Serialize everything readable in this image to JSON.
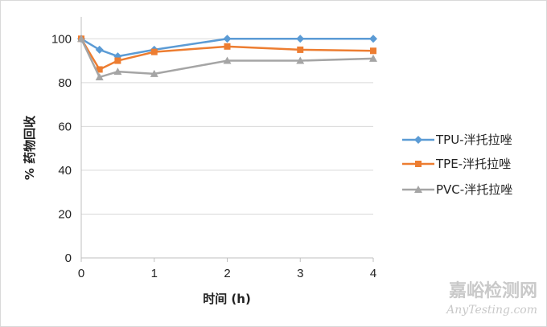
{
  "chart_data": {
    "type": "line",
    "xlabel": "时间 (h)",
    "ylabel": "% 药物回收",
    "x": [
      0,
      0.25,
      0.5,
      1,
      2,
      3,
      4
    ],
    "xlim": [
      0,
      4
    ],
    "ylim": [
      0,
      110
    ],
    "x_ticks": [
      "0",
      "1",
      "2",
      "3",
      "4"
    ],
    "y_ticks": [
      "0",
      "20",
      "40",
      "60",
      "80",
      "100"
    ],
    "grid": "horizontal",
    "legend_position": "right",
    "series": [
      {
        "name": "TPU-泮托拉唑",
        "color": "#5B9BD5",
        "marker": "diamond",
        "values": [
          100,
          95,
          92,
          95,
          100,
          100,
          100
        ]
      },
      {
        "name": "TPE-泮托拉唑",
        "color": "#ED7D31",
        "marker": "square",
        "values": [
          100,
          86,
          90,
          94,
          96.5,
          95,
          94.5
        ]
      },
      {
        "name": "PVC-泮托拉唑",
        "color": "#A5A5A5",
        "marker": "triangle",
        "values": [
          100,
          82.5,
          85,
          84,
          90,
          90,
          91
        ]
      }
    ]
  },
  "watermark": {
    "cn": "嘉峪检测网",
    "en": "AnyTesting.com"
  }
}
